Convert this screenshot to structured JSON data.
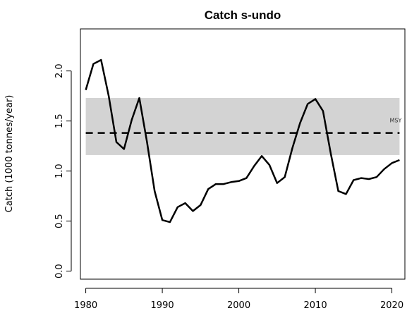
{
  "chart_data": {
    "type": "line",
    "title": "Catch s-undo",
    "xlabel": "",
    "ylabel": "Catch (1000 tonnes/year)",
    "xlim": [
      1979.3,
      2021.7
    ],
    "ylim": [
      -0.08,
      2.42
    ],
    "x_ticks": [
      1980,
      1990,
      2000,
      2010,
      2020
    ],
    "y_ticks": [
      0.0,
      0.5,
      1.0,
      1.5,
      2.0
    ],
    "y_tick_labels": [
      "0.0",
      "0.5",
      "1.0",
      "1.5",
      "2.0"
    ],
    "grid": false,
    "series": [
      {
        "x": [
          1980,
          1981,
          1982,
          1983,
          1984,
          1985,
          1986,
          1987,
          1988,
          1989,
          1990,
          1991,
          1992,
          1993,
          1994,
          1995,
          1996,
          1997,
          1998,
          1999,
          2000,
          2001,
          2002,
          2003,
          2004,
          2005,
          2006,
          2007,
          2008,
          2009,
          2010,
          2011,
          2012,
          2013,
          2014,
          2015,
          2016,
          2017,
          2018,
          2019,
          2020,
          2021
        ],
        "values": [
          1.81,
          2.07,
          2.11,
          1.75,
          1.29,
          1.22,
          1.51,
          1.73,
          1.29,
          0.8,
          0.51,
          0.49,
          0.64,
          0.68,
          0.6,
          0.66,
          0.82,
          0.87,
          0.87,
          0.89,
          0.9,
          0.93,
          1.05,
          1.15,
          1.06,
          0.88,
          0.94,
          1.23,
          1.48,
          1.67,
          1.72,
          1.6,
          1.18,
          0.8,
          0.77,
          0.91,
          0.93,
          0.92,
          0.94,
          1.02,
          1.08,
          1.11
        ],
        "color": "#000000"
      }
    ],
    "msy": {
      "label": "MSY",
      "value": 1.38,
      "band": [
        1.16,
        1.73
      ],
      "band_color": "#d3d3d3"
    }
  }
}
